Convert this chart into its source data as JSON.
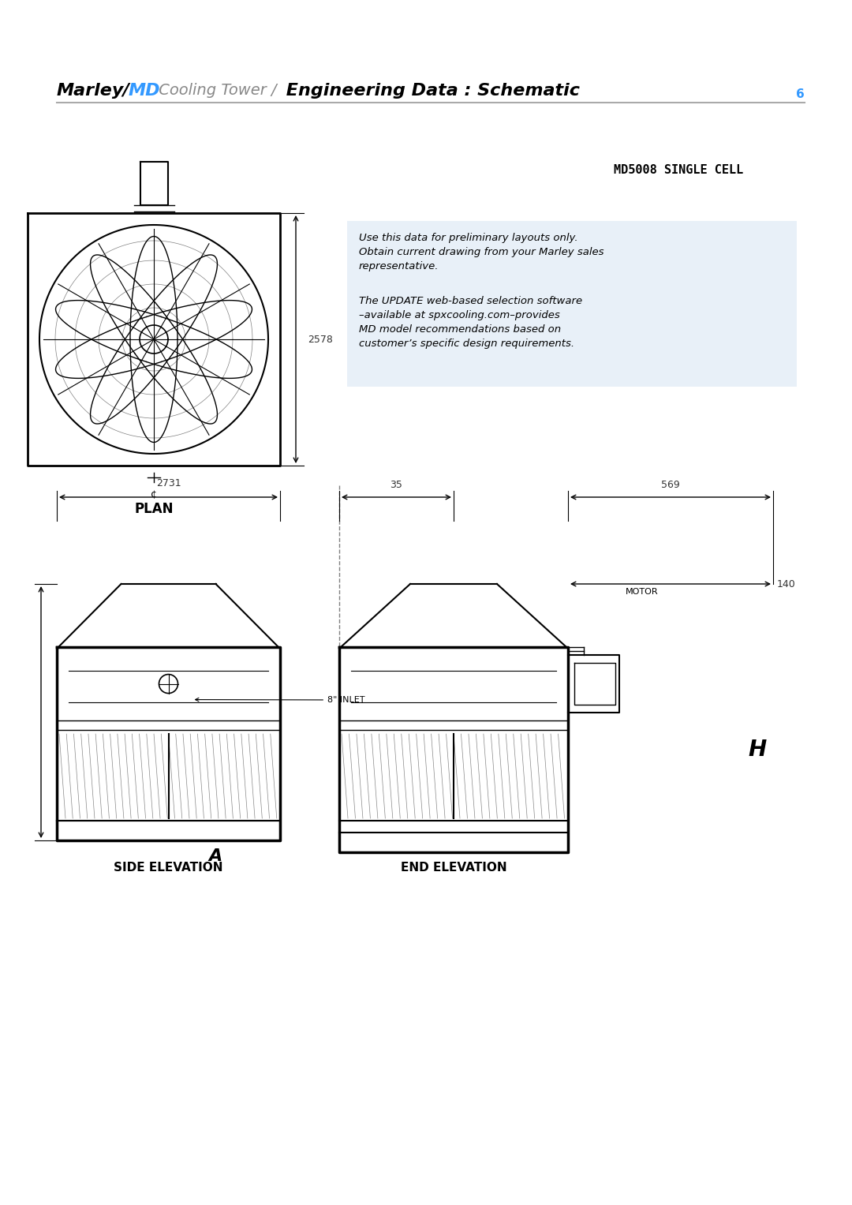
{
  "title_parts": [
    {
      "text": "Marley",
      "style": "bold_italic",
      "color": "#000000"
    },
    {
      "text": " / ",
      "style": "bold_italic",
      "color": "#000000"
    },
    {
      "text": "MD",
      "style": "bold_italic",
      "color": "#3399ff"
    },
    {
      "text": " Cooling Tower / ",
      "style": "italic",
      "color": "#888888"
    },
    {
      "text": "Engineering Data : Schematic",
      "style": "bold_italic",
      "color": "#000000"
    }
  ],
  "page_number": "6",
  "model_label": "MD5008 SINGLE CELL",
  "info_box_text1": "Use this data for preliminary layouts only.\nObtain current drawing from your Marley sales\nrepresentative.",
  "info_box_text2": "The UPDATE web-based selection software\n–available at spxcooling.com–provides\nMD model recommendations based on\ncustomer’s specific design requirements.",
  "info_box_color": "#e8f0f8",
  "dim_2578": "2578",
  "dim_2731": "2731",
  "dim_35": "35",
  "dim_569": "569",
  "dim_140": "140",
  "label_plan": "PLAN",
  "label_side": "SIDE ELEVATION",
  "label_end": "END ELEVATION",
  "label_inlet": "8\" INLET",
  "label_motor": "MOTOR",
  "label_A": "A",
  "label_H": "H",
  "bg_color": "#ffffff",
  "line_color": "#000000",
  "dim_color": "#333333"
}
